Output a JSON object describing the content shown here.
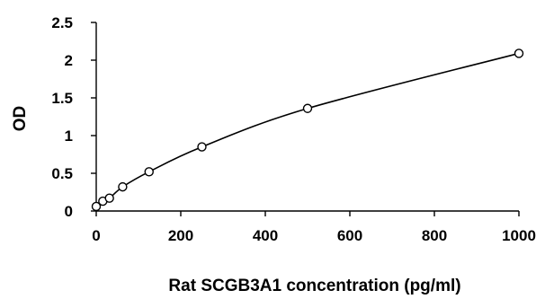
{
  "chart_data": {
    "type": "scatter",
    "title": "",
    "xlabel": "Rat SCGB3A1 concentration (pg/ml)",
    "ylabel": "OD",
    "xlim": [
      0,
      1000
    ],
    "ylim": [
      0,
      2.5
    ],
    "x_ticks": [
      "0",
      "200",
      "400",
      "600",
      "800",
      "1000"
    ],
    "y_ticks": [
      "0",
      "0.5",
      "1",
      "1.5",
      "2",
      "2.5"
    ],
    "grid": false,
    "legend": "none",
    "series": [
      {
        "x": [
          0,
          15.6,
          31.25,
          62.5,
          125,
          250,
          500,
          1000
        ],
        "y": [
          0.06,
          0.13,
          0.17,
          0.32,
          0.52,
          0.85,
          1.36,
          2.09
        ],
        "marker": "open-circle",
        "trendline": "smooth curve"
      }
    ],
    "colors": {
      "line": "#000000",
      "marker": "#000000"
    }
  }
}
